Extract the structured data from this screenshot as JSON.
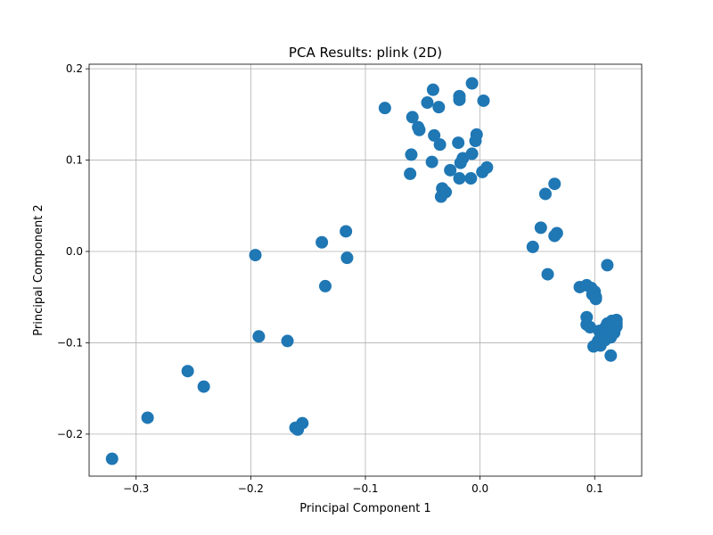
{
  "chart_data": {
    "type": "scatter",
    "title": "PCA Results: plink (2D)",
    "xlabel": "Principal Component 1",
    "ylabel": "Principal Component 2",
    "xlim": [
      -0.341,
      0.141
    ],
    "ylim": [
      -0.246,
      0.205
    ],
    "xticks": [
      -0.3,
      -0.2,
      -0.1,
      0.0,
      0.1
    ],
    "xtick_labels": [
      "−0.3",
      "−0.2",
      "−0.1",
      "0.0",
      "0.1"
    ],
    "yticks": [
      -0.2,
      -0.1,
      0.0,
      0.1,
      0.2
    ],
    "ytick_labels": [
      "−0.2",
      "−0.1",
      "0.0",
      "0.1",
      "0.2"
    ],
    "grid": true,
    "color": "#1f77b4",
    "points": [
      [
        -0.321,
        -0.227
      ],
      [
        -0.29,
        -0.182
      ],
      [
        -0.255,
        -0.131
      ],
      [
        -0.241,
        -0.148
      ],
      [
        -0.196,
        -0.004
      ],
      [
        -0.193,
        -0.093
      ],
      [
        -0.168,
        -0.098
      ],
      [
        -0.161,
        -0.193
      ],
      [
        -0.159,
        -0.195
      ],
      [
        -0.155,
        -0.188
      ],
      [
        -0.138,
        0.01
      ],
      [
        -0.135,
        -0.038
      ],
      [
        -0.117,
        0.022
      ],
      [
        -0.116,
        -0.007
      ],
      [
        -0.083,
        0.157
      ],
      [
        -0.061,
        0.085
      ],
      [
        -0.06,
        0.106
      ],
      [
        -0.059,
        0.147
      ],
      [
        -0.054,
        0.136
      ],
      [
        -0.053,
        0.133
      ],
      [
        -0.046,
        0.163
      ],
      [
        -0.042,
        0.098
      ],
      [
        -0.041,
        0.177
      ],
      [
        -0.04,
        0.127
      ],
      [
        -0.036,
        0.158
      ],
      [
        -0.035,
        0.117
      ],
      [
        -0.034,
        0.06
      ],
      [
        -0.033,
        0.069
      ],
      [
        -0.03,
        0.065
      ],
      [
        -0.026,
        0.089
      ],
      [
        -0.019,
        0.119
      ],
      [
        -0.018,
        0.08
      ],
      [
        -0.018,
        0.17
      ],
      [
        -0.018,
        0.166
      ],
      [
        -0.017,
        0.097
      ],
      [
        -0.015,
        0.102
      ],
      [
        -0.008,
        0.08
      ],
      [
        -0.007,
        0.107
      ],
      [
        -0.007,
        0.184
      ],
      [
        -0.004,
        0.121
      ],
      [
        -0.003,
        0.128
      ],
      [
        0.002,
        0.087
      ],
      [
        0.003,
        0.165
      ],
      [
        0.006,
        0.092
      ],
      [
        0.046,
        0.005
      ],
      [
        0.053,
        0.026
      ],
      [
        0.057,
        0.063
      ],
      [
        0.059,
        -0.025
      ],
      [
        0.065,
        0.074
      ],
      [
        0.065,
        0.017
      ],
      [
        0.067,
        0.02
      ],
      [
        0.087,
        -0.039
      ],
      [
        0.093,
        -0.037
      ],
      [
        0.093,
        -0.072
      ],
      [
        0.093,
        -0.08
      ],
      [
        0.096,
        -0.083
      ],
      [
        0.097,
        -0.04
      ],
      [
        0.098,
        -0.047
      ],
      [
        0.099,
        -0.104
      ],
      [
        0.1,
        -0.044
      ],
      [
        0.101,
        -0.05
      ],
      [
        0.101,
        -0.052
      ],
      [
        0.103,
        -0.098
      ],
      [
        0.104,
        -0.087
      ],
      [
        0.105,
        -0.103
      ],
      [
        0.106,
        -0.093
      ],
      [
        0.107,
        -0.09
      ],
      [
        0.108,
        -0.085
      ],
      [
        0.109,
        -0.097
      ],
      [
        0.11,
        -0.082
      ],
      [
        0.111,
        -0.015
      ],
      [
        0.111,
        -0.079
      ],
      [
        0.112,
        -0.088
      ],
      [
        0.113,
        -0.09
      ],
      [
        0.114,
        -0.085
      ],
      [
        0.114,
        -0.094
      ],
      [
        0.114,
        -0.114
      ],
      [
        0.115,
        -0.076
      ],
      [
        0.116,
        -0.08
      ],
      [
        0.117,
        -0.089
      ],
      [
        0.118,
        -0.084
      ],
      [
        0.119,
        -0.075
      ],
      [
        0.119,
        -0.079
      ],
      [
        0.119,
        -0.082
      ]
    ]
  }
}
